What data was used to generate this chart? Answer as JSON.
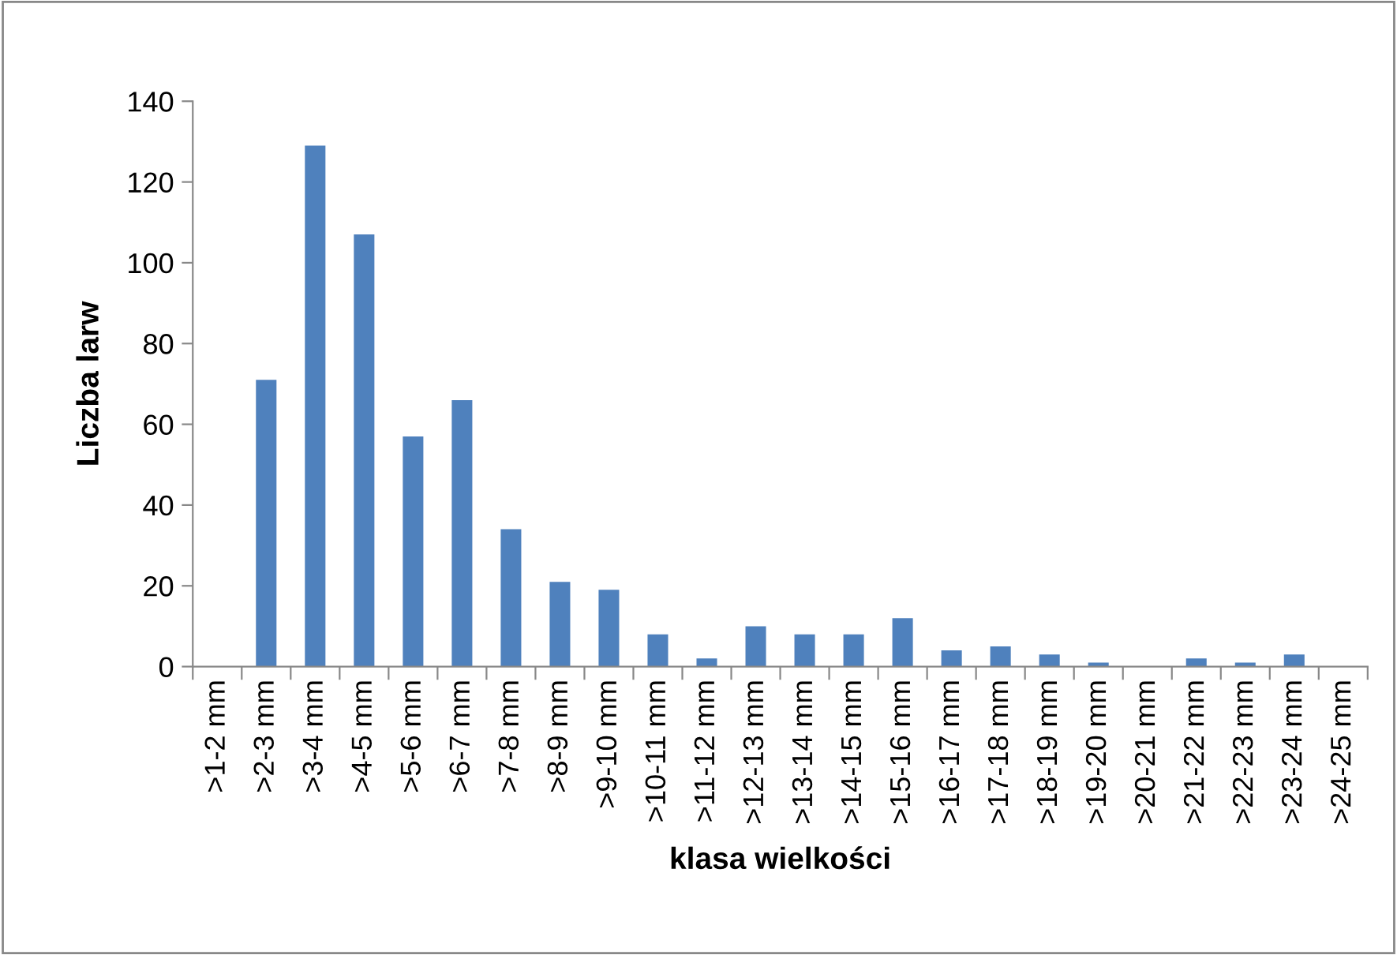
{
  "chart_data": {
    "type": "bar",
    "xlabel": "klasa wielkości",
    "ylabel": "Liczba larw",
    "categories": [
      ">1-2 mm",
      ">2-3 mm",
      ">3-4 mm",
      ">4-5 mm",
      ">5-6 mm",
      ">6-7 mm",
      ">7-8 mm",
      ">8-9 mm",
      ">9-10 mm",
      ">10-11 mm",
      ">11-12 mm",
      ">12-13 mm",
      ">13-14 mm",
      ">14-15 mm",
      ">15-16 mm",
      ">16-17 mm",
      ">17-18 mm",
      ">18-19 mm",
      ">19-20 mm",
      ">20-21 mm",
      ">21-22 mm",
      ">22-23 mm",
      ">23-24 mm",
      ">24-25 mm"
    ],
    "values": [
      0,
      71,
      129,
      107,
      57,
      66,
      34,
      21,
      19,
      8,
      2,
      10,
      8,
      8,
      12,
      4,
      5,
      3,
      1,
      0,
      2,
      1,
      3,
      0
    ],
    "color": "#4f81bd",
    "ylim": [
      0,
      140
    ],
    "yticks": [
      0,
      20,
      40,
      60,
      80,
      100,
      120,
      140
    ],
    "grid": false,
    "legend": false
  }
}
